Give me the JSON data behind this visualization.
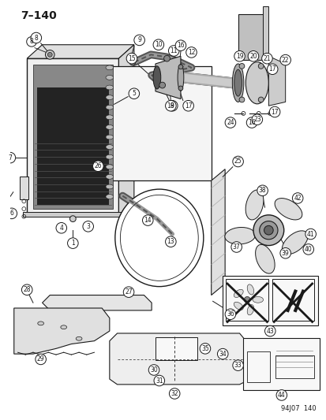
{
  "title": "7–140",
  "footer": "94J07  140",
  "bg_color": "#ffffff",
  "lc": "#1a1a1a",
  "gray_light": "#cccccc",
  "gray_mid": "#888888",
  "gray_dark": "#333333",
  "black": "#111111",
  "fig_width": 4.14,
  "fig_height": 5.33,
  "dpi": 100,
  "part_label_fontsize": 5.5,
  "part_circle_r": 7
}
